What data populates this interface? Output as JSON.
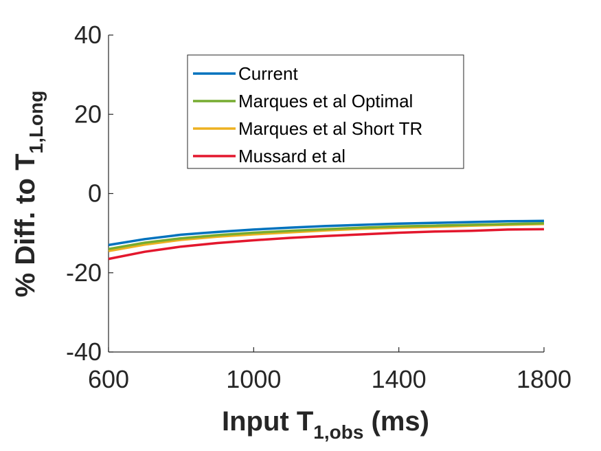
{
  "chart_data": {
    "type": "line",
    "xlabel": {
      "main": "Input T",
      "sub": "1,obs",
      "suffix": " (ms)"
    },
    "ylabel": {
      "main": "% Diff. to T",
      "sub": "1,Long"
    },
    "xlim": [
      600,
      1800
    ],
    "ylim": [
      -40,
      40
    ],
    "xticks": [
      600,
      1000,
      1400,
      1800
    ],
    "xtick_labels": [
      "600",
      "1000",
      "1400",
      "1800"
    ],
    "yticks": [
      -40,
      -20,
      0,
      20,
      40
    ],
    "ytick_labels": [
      "-40",
      "-20",
      "0",
      "20",
      "40"
    ],
    "grid": false,
    "legend_position": "top-center",
    "x": [
      600,
      700,
      800,
      900,
      1000,
      1100,
      1200,
      1300,
      1400,
      1500,
      1600,
      1700,
      1800
    ],
    "series": [
      {
        "name": "Current",
        "color": "#0072BD",
        "values": [
          -13.0,
          -11.5,
          -10.4,
          -9.7,
          -9.1,
          -8.6,
          -8.2,
          -7.9,
          -7.6,
          -7.4,
          -7.2,
          -7.0,
          -6.9
        ]
      },
      {
        "name": "Marques et al Optimal",
        "color": "#77AC30",
        "values": [
          -14.0,
          -12.4,
          -11.3,
          -10.5,
          -9.9,
          -9.4,
          -9.0,
          -8.6,
          -8.3,
          -8.1,
          -7.9,
          -7.7,
          -7.5
        ]
      },
      {
        "name": "Marques et al Short TR",
        "color": "#EDB120",
        "values": [
          -14.5,
          -12.9,
          -11.7,
          -10.9,
          -10.3,
          -9.8,
          -9.3,
          -8.9,
          -8.6,
          -8.4,
          -8.1,
          -7.9,
          -7.7
        ]
      },
      {
        "name": "Mussard et al",
        "color": "#E3172D",
        "values": [
          -16.5,
          -14.7,
          -13.4,
          -12.5,
          -11.8,
          -11.2,
          -10.7,
          -10.3,
          -9.9,
          -9.6,
          -9.4,
          -9.1,
          -9.0
        ]
      }
    ]
  }
}
